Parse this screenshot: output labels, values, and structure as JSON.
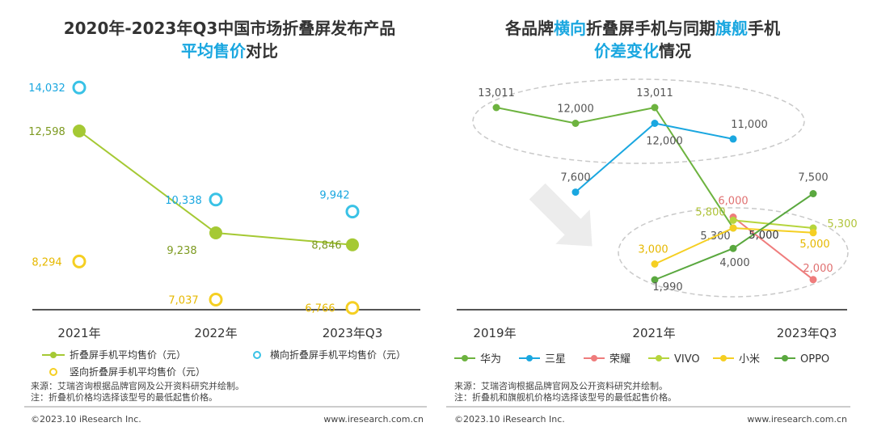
{
  "chart_data": [
    {
      "type": "scatter",
      "title_line1": "2020年-2023年Q3中国市场折叠屏发布产品",
      "title_line2_highlight": "平均售价",
      "title_line2_rest": "对比",
      "categories": [
        "2021年",
        "2022年",
        "2023年Q3"
      ],
      "series": [
        {
          "name": "折叠屏手机平均售价（元）",
          "style": "line-filled",
          "color": "#a5c934",
          "values": [
            12598,
            9238,
            8846
          ],
          "labels": [
            "12,598",
            "9,238",
            "8,846"
          ]
        },
        {
          "name": "横向折叠屏手机平均售价（元）",
          "style": "ring",
          "color": "#39c2e6",
          "values": [
            14032,
            10338,
            9942
          ],
          "labels": [
            "14,032",
            "10,338",
            "9,942"
          ]
        },
        {
          "name": "竖向折叠屏手机平均售价（元）",
          "style": "ring",
          "color": "#f5cf22",
          "values": [
            8294,
            7037,
            6766
          ],
          "labels": [
            "8,294",
            "7,037",
            "6,766"
          ]
        }
      ],
      "ylim": [
        6000,
        15000
      ],
      "legend": "bottom",
      "source": "来源：艾瑞咨询根据品牌官网及公开资料研究并绘制。",
      "note": "注：折叠机价格均选择该型号的最低起售价格。",
      "copyright": "©2023.10 iResearch Inc.",
      "website": "www.iresearch.com.cn"
    },
    {
      "type": "line",
      "title_line1_pre": "各品牌",
      "title_line1_h1": "横向",
      "title_line1_mid": "折叠屏手机与同期",
      "title_line1_h2": "旗舰",
      "title_line1_post": "手机",
      "title_line2_highlight": "价差变化",
      "title_line2_rest": "情况",
      "x_ticks": [
        "2019年",
        "2021年",
        "2023年Q3"
      ],
      "series": [
        {
          "name": "华为",
          "color": "#6db33f",
          "x": [
            2019,
            2020,
            2021,
            2022
          ],
          "values": [
            13011,
            12000,
            13011,
            5300
          ],
          "labels": [
            "13,011",
            "12,000",
            "13,011",
            "5,300"
          ]
        },
        {
          "name": "三星",
          "color": "#1aa7e0",
          "x": [
            2020,
            2021,
            2022
          ],
          "values": [
            7600,
            12000,
            11000
          ],
          "labels": [
            "7,600",
            "12,000",
            "11,000"
          ]
        },
        {
          "name": "荣耀",
          "color": "#ef7c7c",
          "x": [
            2022,
            2023
          ],
          "values": [
            6000,
            2000
          ],
          "labels": [
            "6,000",
            "2,000"
          ]
        },
        {
          "name": "VIVO",
          "color": "#b6d53d",
          "x": [
            2022,
            2023
          ],
          "values": [
            5800,
            5300
          ],
          "labels": [
            "5,800",
            "5,300"
          ]
        },
        {
          "name": "小米",
          "color": "#f5cf22",
          "x": [
            2021,
            2022,
            2023
          ],
          "values": [
            3000,
            5300,
            5000
          ],
          "labels": [
            "3,000",
            "",
            "5,000"
          ]
        },
        {
          "name": "OPPO",
          "color": "#5aa83f",
          "x": [
            2021,
            2022,
            2023
          ],
          "values": [
            1990,
            4000,
            7500
          ],
          "labels": [
            "1,990",
            "4,000",
            "7,500"
          ]
        }
      ],
      "extra_label": "5,000",
      "ylim": [
        0,
        15000
      ],
      "legend": "bottom",
      "source": "来源：艾瑞咨询根据品牌官网及公开资料研究并绘制。",
      "note": "注：折叠机和旗舰机价格均选择该型号的最低起售价格。",
      "copyright": "©2023.10 iResearch Inc.",
      "website": "www.iresearch.com.cn"
    }
  ]
}
